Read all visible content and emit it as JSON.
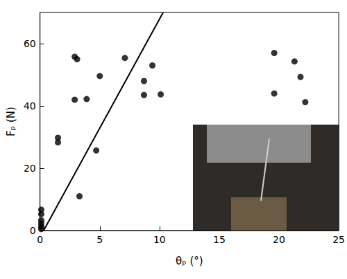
{
  "chart_data": {
    "type": "scatter",
    "xlabel": "θₚ (°)",
    "ylabel": "Fₚ (N)",
    "xlim": [
      0,
      25
    ],
    "xticks": [
      0,
      5,
      10,
      15,
      20,
      25
    ],
    "ylim": [
      0,
      70
    ],
    "yticks": [
      0,
      20,
      40,
      60
    ],
    "grid": false,
    "series": [
      {
        "type": "scatter",
        "color": "#000000",
        "marker": "circle",
        "x": [
          0.1,
          0.1,
          0.1,
          0.1,
          0.1,
          0.1,
          1.5,
          1.5,
          2.9,
          3.1,
          2.9,
          3.3,
          3.9,
          4.7,
          5.0,
          7.1,
          8.7,
          8.7,
          9.4,
          10.1,
          19.6,
          19.6,
          21.3,
          21.8,
          22.2
        ],
        "values": [
          6.7,
          5.3,
          3.3,
          2.2,
          1.3,
          0.5,
          29.8,
          28.3,
          55.8,
          55.0,
          42.0,
          11.0,
          42.2,
          25.7,
          49.6,
          55.4,
          48.0,
          43.5,
          53.0,
          43.7,
          57.0,
          44.0,
          54.3,
          49.3,
          41.2
        ]
      },
      {
        "type": "line",
        "color": "#000000",
        "line_style": "solid",
        "x": [
          0.3,
          10.3
        ],
        "values": [
          0,
          70
        ]
      }
    ]
  }
}
